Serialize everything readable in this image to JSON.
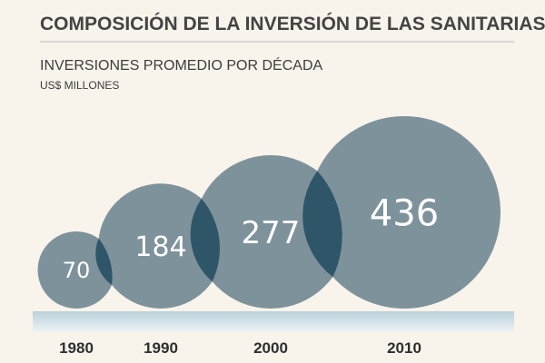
{
  "chart_data": {
    "type": "bubble",
    "title": "COMPOSICIÓN DE LA INVERSIÓN DE LAS SANITARIAS",
    "subtitle": "INVERSIONES PROMEDIO POR DÉCADA",
    "unit": "US$ MILLONES",
    "categories": [
      "1980",
      "1990",
      "2000",
      "2010"
    ],
    "values": [
      70,
      184,
      277,
      436
    ],
    "value_labels": [
      "70",
      "184",
      "277",
      "436"
    ],
    "xlabel": "",
    "ylabel": "",
    "legend": "none"
  },
  "colors": {
    "bubble": "#7e929b",
    "overlap": "#2f5668",
    "label": "#ffffff",
    "base_band": "#cfdfe5",
    "background": "#f8f3eb",
    "title": "#444444",
    "rule": "#bdbdbd"
  }
}
